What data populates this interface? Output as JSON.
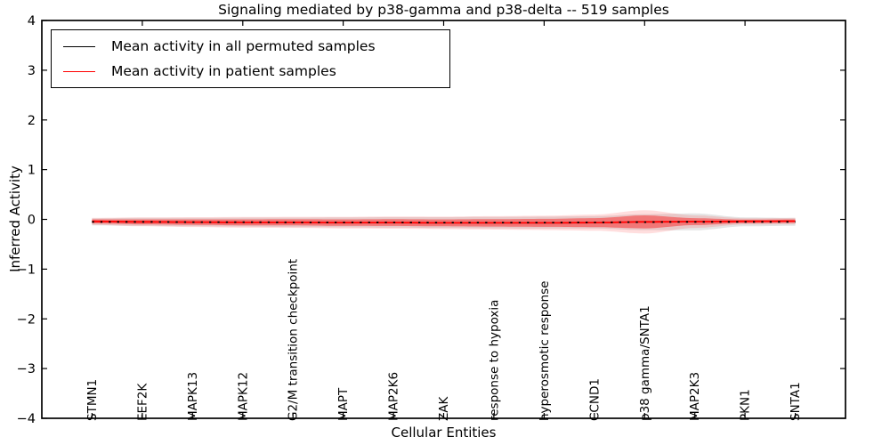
{
  "figure": {
    "title": "Signaling mediated by p38-gamma and p38-delta -- 519 samples"
  },
  "legend": {
    "items": [
      {
        "label": "Mean activity in all permuted samples",
        "color": "#000000"
      },
      {
        "label": "Mean activity in patient samples",
        "color": "#ff0000"
      }
    ],
    "position": "upper left"
  },
  "chart_data": {
    "type": "line",
    "title": "Signaling mediated by p38-gamma and p38-delta -- 519 samples",
    "xlabel": "Cellular Entities",
    "ylabel": "Inferred Activity",
    "ylim": [
      -4,
      4
    ],
    "xlim": [
      -1,
      15
    ],
    "yticks": [
      4,
      3,
      2,
      1,
      0,
      -1,
      -2,
      -3,
      -4
    ],
    "grid": false,
    "legend_position": "upper left",
    "categories": [
      "STMN1",
      "EEF2K",
      "MAPK13",
      "MAPK12",
      "G2/M transition checkpoint",
      "MAPT",
      "MAP2K6",
      "ZAK",
      "response to hypoxia",
      "hyperosmotic response",
      "CCND1",
      "p38 gamma/SNTA1",
      "MAP2K3",
      "PKN1",
      "SNTA1"
    ],
    "series": [
      {
        "name": "Mean activity in all permuted samples",
        "color": "#000000",
        "style": "dotted",
        "values": [
          -0.05,
          -0.05,
          -0.055,
          -0.055,
          -0.06,
          -0.06,
          -0.06,
          -0.065,
          -0.065,
          -0.065,
          -0.06,
          -0.055,
          -0.05,
          -0.05,
          -0.05
        ],
        "band": [
          0.07,
          0.08,
          0.085,
          0.09,
          0.095,
          0.1,
          0.105,
          0.11,
          0.115,
          0.12,
          0.125,
          0.16,
          0.17,
          0.09,
          0.08
        ],
        "band_color": "#bbbbbb"
      },
      {
        "name": "Mean activity in patient samples",
        "color": "#ff0000",
        "style": "solid",
        "values": [
          -0.04,
          -0.05,
          -0.055,
          -0.06,
          -0.06,
          -0.065,
          -0.065,
          -0.07,
          -0.07,
          -0.07,
          -0.065,
          -0.05,
          -0.045,
          -0.04,
          -0.035
        ],
        "band": [
          0.04,
          0.05,
          0.055,
          0.06,
          0.062,
          0.065,
          0.068,
          0.07,
          0.075,
          0.08,
          0.09,
          0.13,
          0.07,
          0.035,
          0.035
        ],
        "band_color": "#ff0000"
      }
    ]
  }
}
